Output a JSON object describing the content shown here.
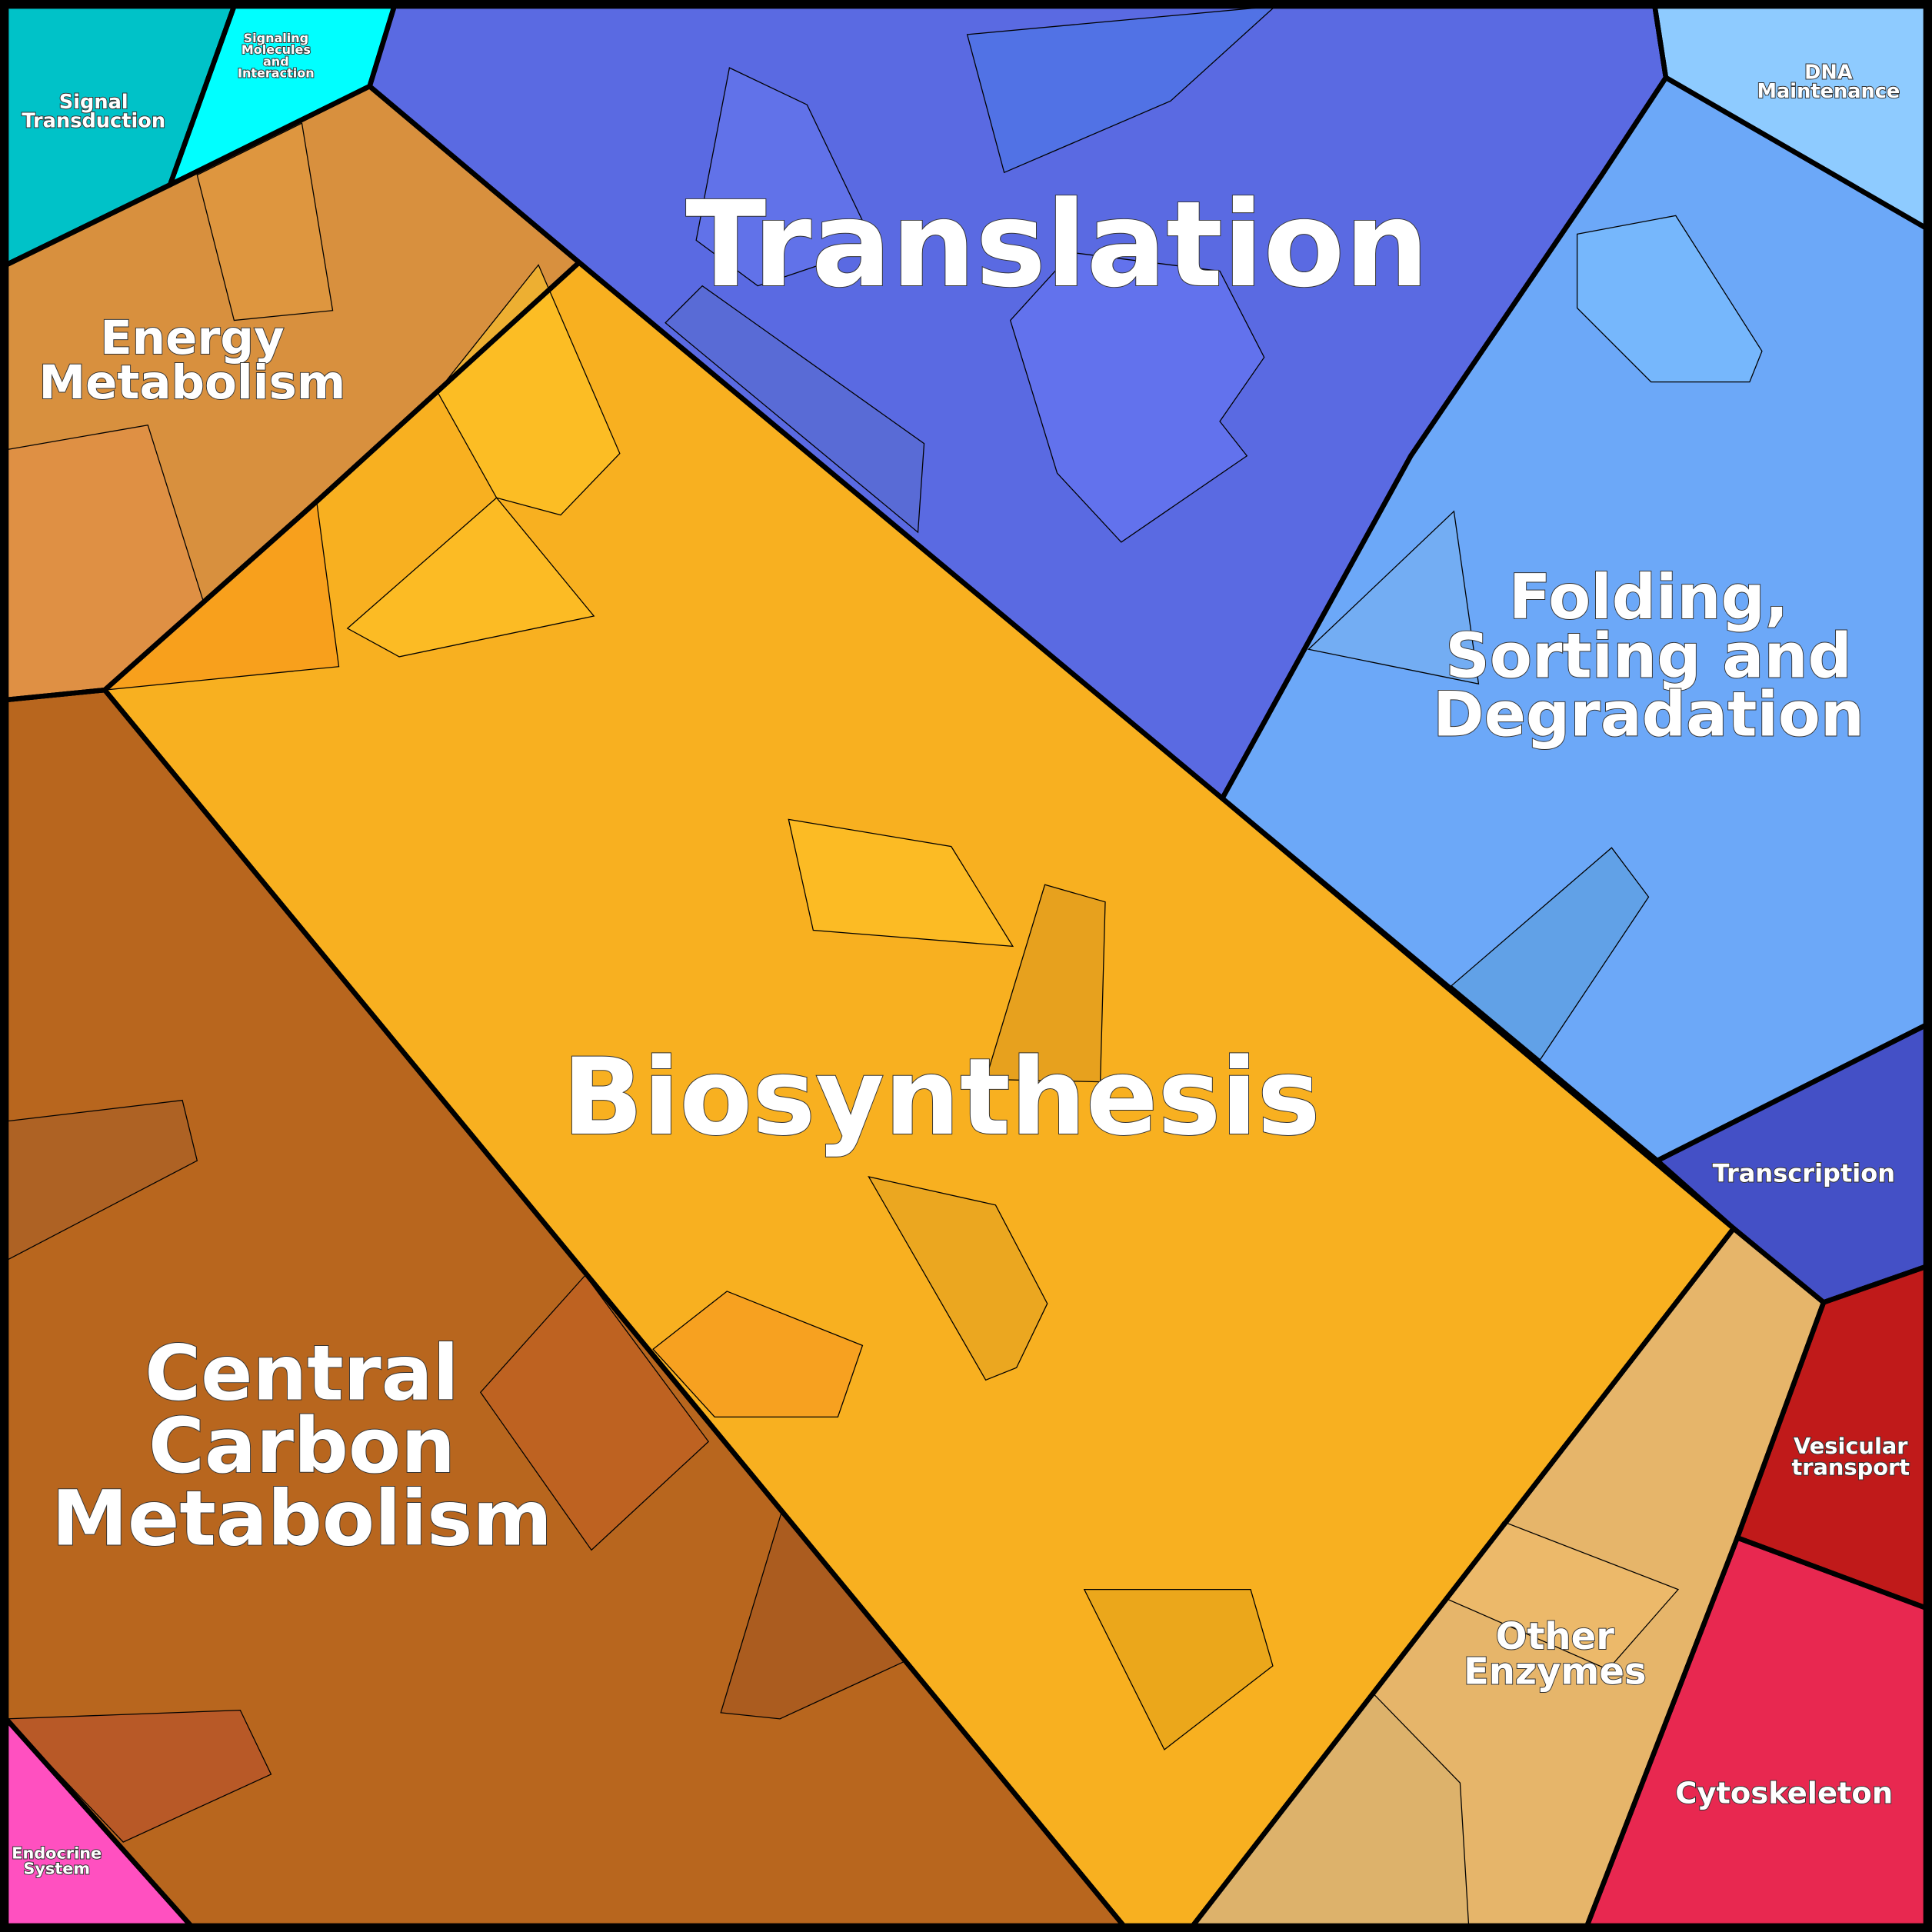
{
  "regions": {
    "signal_transduction": {
      "label_lines": [
        "Signal",
        "Transduction"
      ],
      "color": "#00c2c8"
    },
    "signaling_molecules": {
      "label_lines": [
        "Signaling",
        "Molecules",
        "and",
        "Interaction"
      ],
      "color": "#00ffff"
    },
    "energy_metabolism": {
      "label_lines": [
        "Energy",
        "Metabolism"
      ],
      "color": "#d8903e"
    },
    "translation": {
      "label_lines": [
        "Translation"
      ],
      "color": "#5a6ae2"
    },
    "dna_maintenance": {
      "label_lines": [
        "DNA",
        "Maintenance"
      ],
      "color": "#8ecbff"
    },
    "folding": {
      "label_lines": [
        "Folding,",
        "Sorting and",
        "Degradation"
      ],
      "color": "#6ca8f8"
    },
    "transcription": {
      "label_lines": [
        "Transcription"
      ],
      "color": "#4450c6"
    },
    "vesicular_transport": {
      "label_lines": [
        "Vesicular",
        "transport"
      ],
      "color": "#c01a1a"
    },
    "cytoskeleton": {
      "label_lines": [
        "Cytoskeleton"
      ],
      "color": "#e82850"
    },
    "other_enzymes": {
      "label_lines": [
        "Other",
        "Enzymes"
      ],
      "color": "#e6b56a"
    },
    "biosynthesis": {
      "label_lines": [
        "Biosynthesis"
      ],
      "color": "#f8b020"
    },
    "central_carbon": {
      "label_lines": [
        "Central",
        "Carbon",
        "Metabolism"
      ],
      "color": "#b8661e"
    },
    "endocrine": {
      "label_lines": [
        "Endocrine",
        "System"
      ],
      "color": "#ff50c0"
    }
  }
}
